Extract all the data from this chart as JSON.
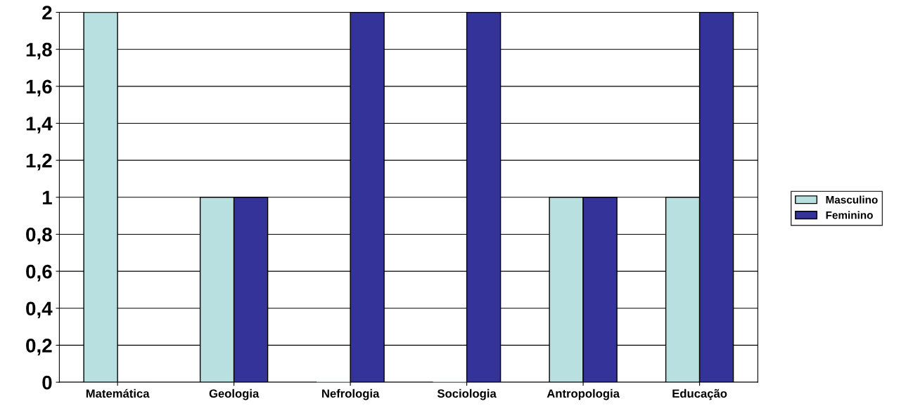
{
  "chart_data": {
    "type": "bar",
    "categories": [
      "Matemática",
      "Geologia",
      "Nefrologia",
      "Sociologia",
      "Antropologia",
      "Educação"
    ],
    "series": [
      {
        "name": "Masculino",
        "color": "#b8e0e0",
        "values": [
          2,
          1,
          0,
          0,
          1,
          1
        ]
      },
      {
        "name": "Feminino",
        "color": "#333399",
        "values": [
          0,
          1,
          2,
          2,
          1,
          2
        ]
      }
    ],
    "ylim": [
      0,
      2
    ],
    "yticks": [
      0,
      {
        "value": 0.2,
        "label": "0,2"
      },
      {
        "value": 0.4,
        "label": "0,4"
      },
      {
        "value": 0.6,
        "label": "0,6"
      },
      {
        "value": 0.8,
        "label": "0,8"
      },
      1,
      {
        "value": 1.2,
        "label": "1,2"
      },
      {
        "value": 1.4,
        "label": "1,4"
      },
      {
        "value": 1.6,
        "label": "1,6"
      },
      {
        "value": 1.8,
        "label": "1,8"
      },
      2
    ],
    "grid": "y",
    "legend": "right"
  }
}
